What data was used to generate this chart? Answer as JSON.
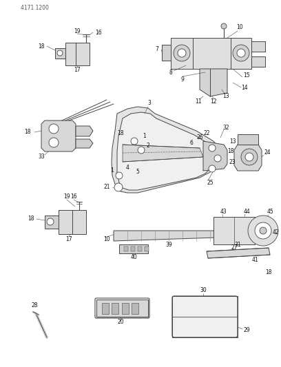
{
  "page_id": "4171 1200",
  "bg": "#f5f5f0",
  "lc": "#444444",
  "tc": "#111111",
  "fig_w": 4.08,
  "fig_h": 5.33,
  "dpi": 100
}
